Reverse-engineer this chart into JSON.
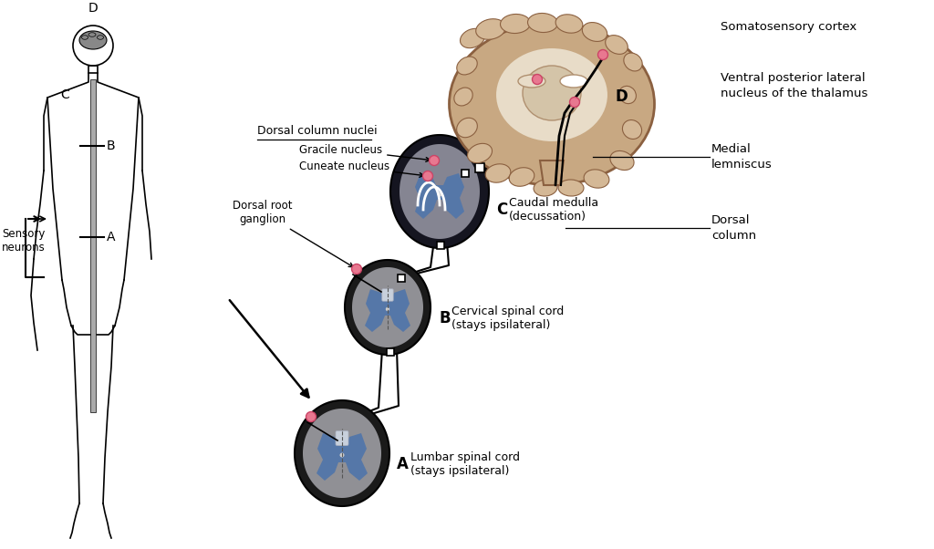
{
  "bg": "#ffffff",
  "labels": {
    "sensory_neurons": "Sensory\nneurons",
    "dorsal_root_ganglion": "Dorsal root\nganglion",
    "dorsal_column_nuclei": "Dorsal column nuclei",
    "gracile_nucleus": "Gracile nucleus",
    "cuneate_nucleus": "Cuneate nucleus",
    "medial_lemniscus": "Medial\nlemniscus",
    "caudal_medulla": "Caudal medulla\n(decussation)",
    "cervical_spinal_cord": "Cervical spinal cord\n(stays ipsilateral)",
    "lumbar_spinal_cord": "Lumbar spinal cord\n(stays ipsilateral)",
    "somatosensory_cortex": "Somatosensory cortex",
    "ventral_posterior": "Ventral posterior lateral\nnucleus of the thalamus",
    "dorsal_column": "Dorsal\ncolumn"
  },
  "body_outline": "#000000",
  "spinal_gray": "#909095",
  "spinal_dark": "#1a1a1a",
  "blue": "#5577a8",
  "medulla_dark": "#151520",
  "medulla_gray": "#858592",
  "brain_tan": "#c8a882",
  "brain_edge": "#8b6040",
  "brain_light": "#d4b896",
  "brain_inner": "#e8dcc8",
  "pink_dot_color": "#e87890",
  "pink_dot_edge": "#cc4466",
  "white_dc": "#c8d0dc",
  "white_dc_edge": "#aab0c0",
  "dashed": "#555555"
}
